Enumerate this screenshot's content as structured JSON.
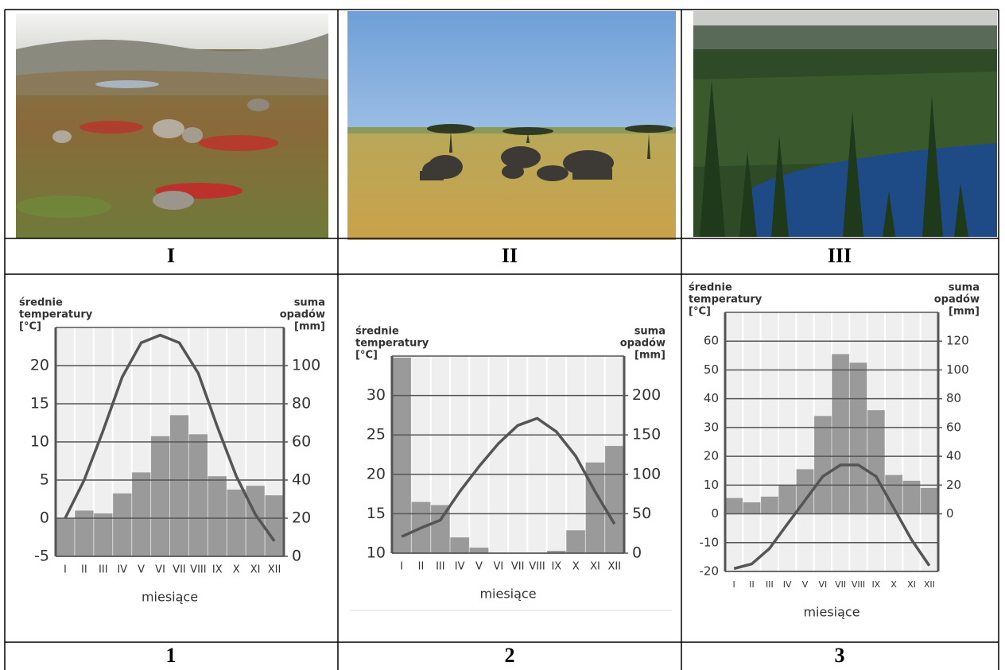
{
  "table": {
    "photo_labels": [
      "I",
      "II",
      "III"
    ],
    "chart_labels": [
      "1",
      "2",
      "3"
    ]
  },
  "chart_data": [
    {
      "type": "climate",
      "ylabel": [
        "średnie",
        "temperatury",
        "[°C]"
      ],
      "y2label": [
        "suma",
        "opadów",
        "[mm]"
      ],
      "xlabel": "miesiące",
      "categories": [
        "I",
        "II",
        "III",
        "IV",
        "V",
        "VI",
        "VII",
        "VIII",
        "IX",
        "X",
        "XI",
        "XII"
      ],
      "ylim": [
        -5,
        25
      ],
      "yticks": [
        -5,
        0,
        5,
        10,
        15,
        20
      ],
      "y2lim": [
        0,
        120
      ],
      "y2ticks": [
        0,
        20,
        40,
        60,
        80,
        100
      ],
      "series": [
        {
          "type": "bar",
          "axis": "y2",
          "color": "#9a9a9a",
          "values": [
            20,
            24,
            22.5,
            33,
            44,
            63,
            74,
            64,
            42,
            35,
            37,
            32
          ]
        },
        {
          "type": "line",
          "color": "#555555",
          "values": [
            0,
            5,
            11.5,
            18.5,
            23,
            24,
            23,
            19,
            12,
            5.5,
            0.5,
            -3
          ]
        }
      ]
    },
    {
      "type": "climate",
      "ylabel": [
        "średnie",
        "temperatury",
        "[°C]"
      ],
      "y2label": [
        "suma",
        "opadów",
        "[mm]"
      ],
      "xlabel": "miesiące",
      "categories": [
        "I",
        "II",
        "III",
        "IV",
        "V",
        "VI",
        "VII",
        "VIII",
        "IX",
        "X",
        "XI",
        "XII"
      ],
      "ylim": [
        10,
        35
      ],
      "yticks": [
        10,
        15,
        20,
        25,
        30
      ],
      "y2lim": [
        0,
        250
      ],
      "y2ticks": [
        0,
        50,
        100,
        150,
        200
      ],
      "series": [
        {
          "type": "bar",
          "axis": "y2",
          "color": "#9a9a9a",
          "values": [
            248,
            65,
            61,
            20,
            7,
            0,
            0,
            0,
            3,
            29,
            115,
            136
          ]
        },
        {
          "type": "line",
          "color": "#555555",
          "values": [
            12.1,
            13.2,
            14.2,
            17.8,
            21,
            23.9,
            26.2,
            27.1,
            25.4,
            22.3,
            17.8,
            13.7
          ]
        }
      ]
    },
    {
      "type": "climate",
      "ylabel": [
        "średnie",
        "temperatury",
        "[°C]"
      ],
      "y2label": [
        "suma",
        "opadów",
        "[mm]"
      ],
      "xlabel": "miesiące",
      "categories": [
        "I",
        "II",
        "III",
        "IV",
        "V",
        "VI",
        "VII",
        "VIII",
        "IX",
        "X",
        "XI",
        "XII"
      ],
      "ylim": [
        -20,
        70
      ],
      "yticks": [
        -20,
        -10,
        0,
        10,
        20,
        30,
        40,
        50,
        60
      ],
      "y2lim": [
        -40,
        140
      ],
      "y2ticks": [
        0,
        20,
        40,
        60,
        80,
        100,
        120
      ],
      "series": [
        {
          "type": "bar",
          "axis": "y2",
          "color": "#9a9a9a",
          "values": [
            11,
            8,
            12,
            20,
            31,
            68,
            111,
            105,
            72,
            27,
            23,
            18
          ]
        },
        {
          "type": "line",
          "color": "#555555",
          "values": [
            -19,
            -17.4,
            -12,
            -3.6,
            4.7,
            13,
            17,
            17,
            13,
            2,
            -9,
            -18
          ]
        }
      ]
    }
  ]
}
